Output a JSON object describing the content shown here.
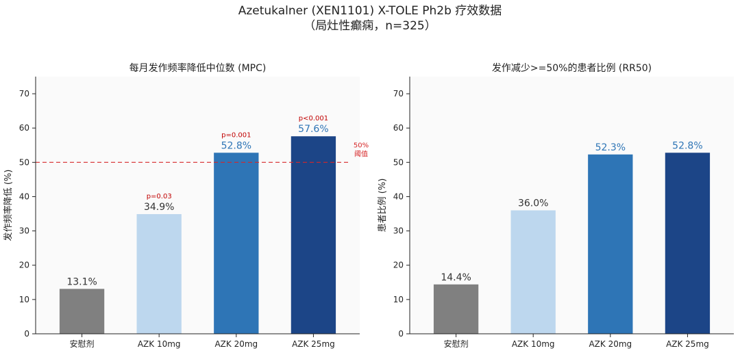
{
  "figure": {
    "title_line1": "Azetukalner (XEN1101) X-TOLE Ph2b 疗效数据",
    "title_line2": "（局灶性癫痫，n=325）"
  },
  "chart_data": [
    {
      "type": "bar",
      "title": "每月发作频率降低中位数 (MPC)",
      "xlabel": "",
      "ylabel": "发作频率降低 (%)",
      "ylim": [
        0,
        75
      ],
      "yticks": [
        0,
        10,
        20,
        30,
        40,
        50,
        60,
        70
      ],
      "grid": false,
      "categories": [
        "安慰剂",
        "AZK 10mg",
        "AZK 20mg",
        "AZK 25mg"
      ],
      "values": [
        13.1,
        34.9,
        52.8,
        57.6
      ],
      "value_labels": [
        "13.1%",
        "34.9%",
        "52.8%",
        "57.6%"
      ],
      "colors": [
        "#808080",
        "#bdd7ee",
        "#2e75b6",
        "#1c4587"
      ],
      "value_label_colors": [
        "#333333",
        "#333333",
        "#2e75b6",
        "#2e75b6"
      ],
      "p_values": [
        "",
        "p=0.03",
        "p=0.001",
        "p<0.001"
      ],
      "p_value_color": "#c00000",
      "threshold": {
        "value": 50,
        "label_line1": "50%",
        "label_line2": "阈值",
        "color": "#d62728"
      }
    },
    {
      "type": "bar",
      "title": "发作减少>=50%的患者比例 (RR50)",
      "xlabel": "",
      "ylabel": "患者比例 (%)",
      "ylim": [
        0,
        75
      ],
      "yticks": [
        0,
        10,
        20,
        30,
        40,
        50,
        60,
        70
      ],
      "grid": false,
      "categories": [
        "安慰剂",
        "AZK 10mg",
        "AZK 20mg",
        "AZK 25mg"
      ],
      "values": [
        14.4,
        36.0,
        52.3,
        52.8
      ],
      "value_labels": [
        "14.4%",
        "36.0%",
        "52.3%",
        "52.8%"
      ],
      "colors": [
        "#808080",
        "#bdd7ee",
        "#2e75b6",
        "#1c4587"
      ],
      "value_label_colors": [
        "#333333",
        "#333333",
        "#2e75b6",
        "#2e75b6"
      ],
      "p_values": [
        "",
        "",
        "",
        ""
      ],
      "p_value_color": "#c00000"
    }
  ]
}
